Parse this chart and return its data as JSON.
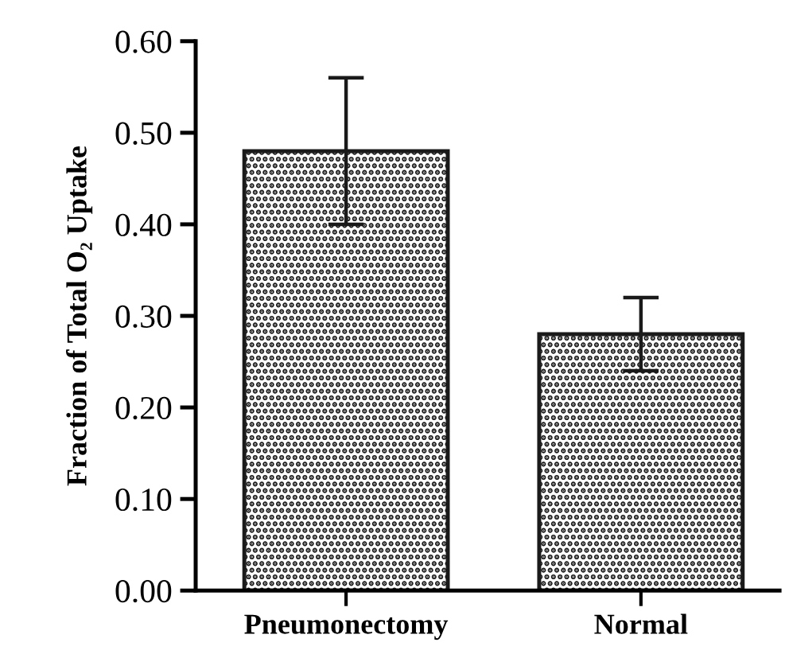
{
  "chart_data": {
    "type": "bar",
    "ylabel": "Fraction of Total O₂ Uptake",
    "categories": [
      "Pneumonectomy",
      "Normal"
    ],
    "values": [
      0.48,
      0.28
    ],
    "errors": [
      0.08,
      0.04
    ],
    "color": "#1a1a1a",
    "ylim": [
      0,
      0.6
    ],
    "yticks": [
      {
        "value": 0,
        "label": "0.00"
      },
      {
        "value": 0.1,
        "label": "0.10"
      },
      {
        "value": 0.2,
        "label": "0.20"
      },
      {
        "value": 0.3,
        "label": "0.30"
      },
      {
        "value": 0.4,
        "label": "0.40"
      },
      {
        "value": 0.5,
        "label": "0.50"
      },
      {
        "value": 0.6,
        "label": "0.60"
      }
    ],
    "grid": false
  }
}
